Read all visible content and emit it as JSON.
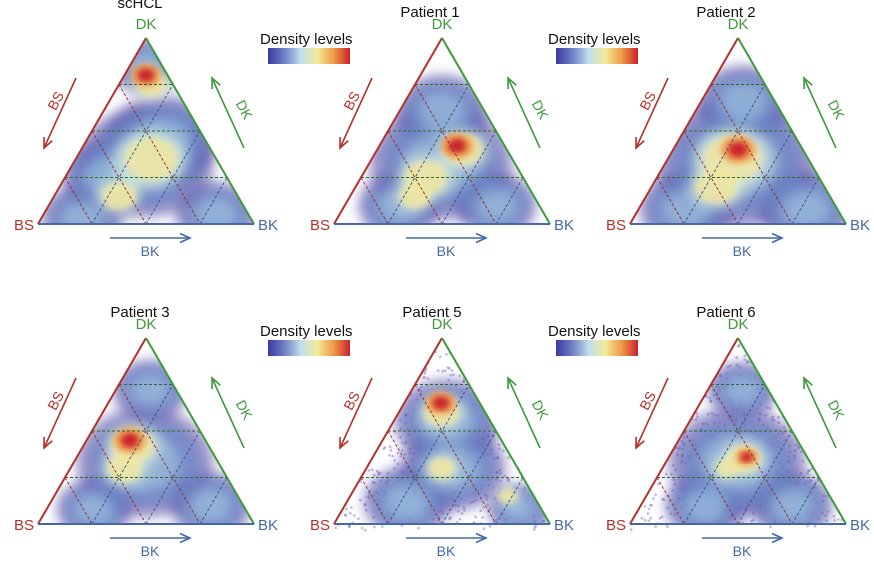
{
  "legend": {
    "title": "Density levels",
    "gradient": [
      "#3a3a9e",
      "#6d7fc4",
      "#bfe0ee",
      "#f3ea9a",
      "#f29a46",
      "#c8202a"
    ]
  },
  "colors": {
    "BS": "#b5302a",
    "DK": "#3d9a3a",
    "BK": "#4468a8",
    "density_edge": "#5a4aa8",
    "grid": "#333333"
  },
  "chart_data": [
    {
      "type": "heatmap",
      "subtype": "ternary-density",
      "title": "scHCL",
      "vertices": {
        "left": "BS",
        "top": "DK",
        "right": "BK"
      },
      "axis_arrows": {
        "left_edge": "BS",
        "right_edge": "DK",
        "bottom_edge": "BK"
      },
      "peak": {
        "BS": 0.1,
        "DK": 0.8,
        "BK": 0.1
      },
      "shape": "three-lobed density spread toward all corners, hottest near DK apex",
      "points_outside": false
    },
    {
      "type": "heatmap",
      "subtype": "ternary-density",
      "title": "Patient 1",
      "vertices": {
        "left": "BS",
        "top": "DK",
        "right": "BK"
      },
      "axis_arrows": {
        "left_edge": "BS",
        "right_edge": "DK",
        "bottom_edge": "BK"
      },
      "peak": {
        "BS": 0.3,
        "DK": 0.4,
        "BK": 0.3
      },
      "shape": "elongated ridge from lower-left toward center-right",
      "points_outside": false
    },
    {
      "type": "heatmap",
      "subtype": "ternary-density",
      "title": "Patient 2",
      "vertices": {
        "left": "BS",
        "top": "DK",
        "right": "BK"
      },
      "axis_arrows": {
        "left_edge": "BS",
        "right_edge": "DK",
        "bottom_edge": "BK"
      },
      "peak": {
        "BS": 0.3,
        "DK": 0.4,
        "BK": 0.3
      },
      "shape": "broad central density filling the triangle",
      "points_outside": false
    },
    {
      "type": "heatmap",
      "subtype": "ternary-density",
      "title": "Patient 3",
      "vertices": {
        "left": "BS",
        "top": "DK",
        "right": "BK"
      },
      "axis_arrows": {
        "left_edge": "BS",
        "right_edge": "DK",
        "bottom_edge": "BK"
      },
      "peak": {
        "BS": 0.35,
        "DK": 0.45,
        "BK": 0.2
      },
      "shape": "compact central peak with spread toward corners",
      "points_outside": false
    },
    {
      "type": "heatmap",
      "subtype": "ternary-density",
      "title": "Patient 5",
      "vertices": {
        "left": "BS",
        "top": "DK",
        "right": "BK"
      },
      "axis_arrows": {
        "left_edge": "BS",
        "right_edge": "DK",
        "bottom_edge": "BK"
      },
      "peak": {
        "BS": 0.15,
        "DK": 0.6,
        "BK": 0.25
      },
      "shape": "upper peak with streak toward BK corner and scattered points",
      "points_outside": true
    },
    {
      "type": "heatmap",
      "subtype": "ternary-density",
      "title": "Patient 6",
      "vertices": {
        "left": "BS",
        "top": "DK",
        "right": "BK"
      },
      "axis_arrows": {
        "left_edge": "BS",
        "right_edge": "DK",
        "bottom_edge": "BK"
      },
      "peak": {
        "BS": 0.25,
        "DK": 0.35,
        "BK": 0.4
      },
      "shape": "small central peak with wide scattered halo of points",
      "points_outside": true
    }
  ]
}
